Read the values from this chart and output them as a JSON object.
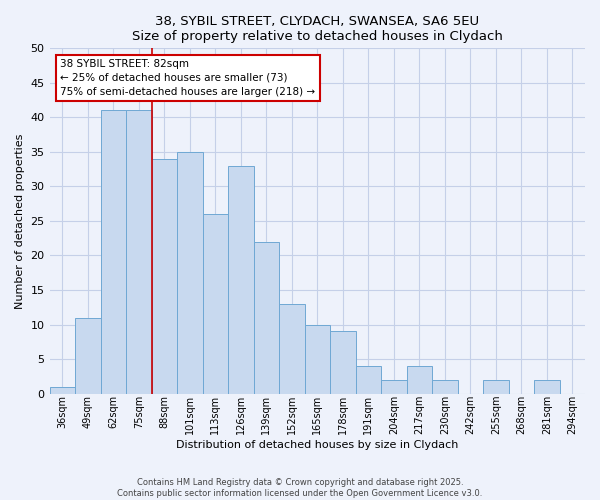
{
  "title": "38, SYBIL STREET, CLYDACH, SWANSEA, SA6 5EU",
  "subtitle": "Size of property relative to detached houses in Clydach",
  "xlabel": "Distribution of detached houses by size in Clydach",
  "ylabel": "Number of detached properties",
  "categories": [
    "36sqm",
    "49sqm",
    "62sqm",
    "75sqm",
    "88sqm",
    "101sqm",
    "113sqm",
    "126sqm",
    "139sqm",
    "152sqm",
    "165sqm",
    "178sqm",
    "191sqm",
    "204sqm",
    "217sqm",
    "230sqm",
    "242sqm",
    "255sqm",
    "268sqm",
    "281sqm",
    "294sqm"
  ],
  "values": [
    1,
    11,
    41,
    41,
    34,
    35,
    26,
    33,
    22,
    13,
    10,
    9,
    4,
    2,
    4,
    2,
    0,
    2,
    0,
    2,
    0
  ],
  "bar_color": "#c8d9ef",
  "bar_edge_color": "#6fa8d4",
  "ylim": [
    0,
    50
  ],
  "yticks": [
    0,
    5,
    10,
    15,
    20,
    25,
    30,
    35,
    40,
    45,
    50
  ],
  "annotation_title": "38 SYBIL STREET: 82sqm",
  "annotation_line1": "← 25% of detached houses are smaller (73)",
  "annotation_line2": "75% of semi-detached houses are larger (218) →",
  "annotation_box_color": "#ffffff",
  "annotation_border_color": "#cc0000",
  "property_line_x": 4,
  "property_line_color": "#cc0000",
  "footer1": "Contains HM Land Registry data © Crown copyright and database right 2025.",
  "footer2": "Contains public sector information licensed under the Open Government Licence v3.0.",
  "bg_color": "#eef2fb",
  "grid_color": "#c5d0e8"
}
